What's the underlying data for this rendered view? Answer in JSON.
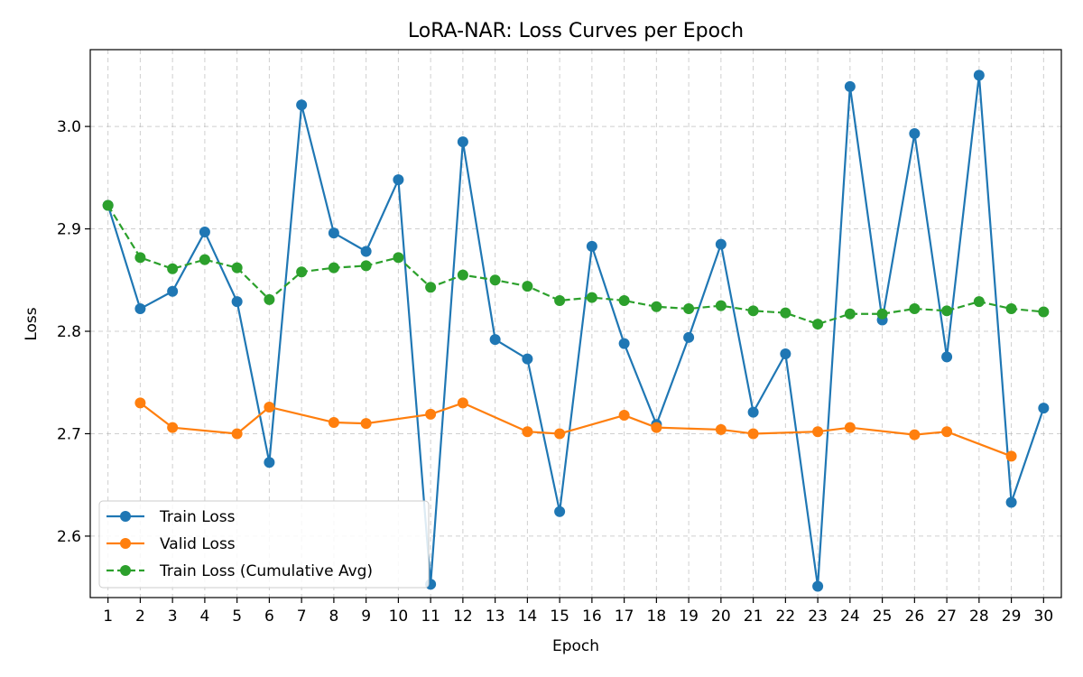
{
  "chart_data": {
    "type": "line",
    "title": "LoRA-NAR: Loss Curves per Epoch",
    "xlabel": "Epoch",
    "ylabel": "Loss",
    "x": [
      1,
      2,
      3,
      4,
      5,
      6,
      7,
      8,
      9,
      10,
      11,
      12,
      13,
      14,
      15,
      16,
      17,
      18,
      19,
      20,
      21,
      22,
      23,
      24,
      25,
      26,
      27,
      28,
      29,
      30
    ],
    "xlim": [
      0.45,
      30.55
    ],
    "ylim": [
      2.54,
      3.075
    ],
    "yticks": [
      2.6,
      2.7,
      2.8,
      2.9,
      3.0
    ],
    "ytick_labels": [
      "2.6",
      "2.7",
      "2.8",
      "2.9",
      "3.0"
    ],
    "grid": true,
    "legend_position": "lower-left",
    "series": [
      {
        "name": "Train Loss",
        "color": "#1f77b4",
        "style": "solid",
        "x": [
          1,
          2,
          3,
          4,
          5,
          6,
          7,
          8,
          9,
          10,
          11,
          12,
          13,
          14,
          15,
          16,
          17,
          18,
          19,
          20,
          21,
          22,
          23,
          24,
          25,
          26,
          27,
          28,
          29,
          30
        ],
        "values": [
          2.923,
          2.822,
          2.839,
          2.897,
          2.829,
          2.672,
          3.021,
          2.896,
          2.878,
          2.948,
          2.553,
          2.985,
          2.792,
          2.773,
          2.624,
          2.883,
          2.788,
          2.709,
          2.794,
          2.885,
          2.721,
          2.778,
          2.551,
          3.039,
          2.811,
          2.993,
          2.775,
          3.05,
          2.633,
          2.725
        ]
      },
      {
        "name": "Valid Loss",
        "color": "#ff7f0e",
        "style": "solid",
        "x": [
          2,
          3,
          5,
          6,
          8,
          9,
          11,
          12,
          14,
          15,
          17,
          18,
          20,
          21,
          23,
          24,
          26,
          27,
          29
        ],
        "values": [
          2.73,
          2.706,
          2.7,
          2.726,
          2.711,
          2.71,
          2.719,
          2.73,
          2.702,
          2.7,
          2.718,
          2.706,
          2.704,
          2.7,
          2.702,
          2.706,
          2.699,
          2.702,
          2.678
        ]
      },
      {
        "name": "Train Loss (Cumulative Avg)",
        "color": "#2ca02c",
        "style": "dashed",
        "x": [
          1,
          2,
          3,
          4,
          5,
          6,
          7,
          8,
          9,
          10,
          11,
          12,
          13,
          14,
          15,
          16,
          17,
          18,
          19,
          20,
          21,
          22,
          23,
          24,
          25,
          26,
          27,
          28,
          29,
          30
        ],
        "values": [
          2.923,
          2.872,
          2.861,
          2.87,
          2.862,
          2.831,
          2.858,
          2.862,
          2.864,
          2.872,
          2.843,
          2.855,
          2.85,
          2.844,
          2.83,
          2.833,
          2.83,
          2.824,
          2.822,
          2.825,
          2.82,
          2.818,
          2.807,
          2.817,
          2.817,
          2.822,
          2.82,
          2.829,
          2.822,
          2.819
        ]
      }
    ]
  }
}
